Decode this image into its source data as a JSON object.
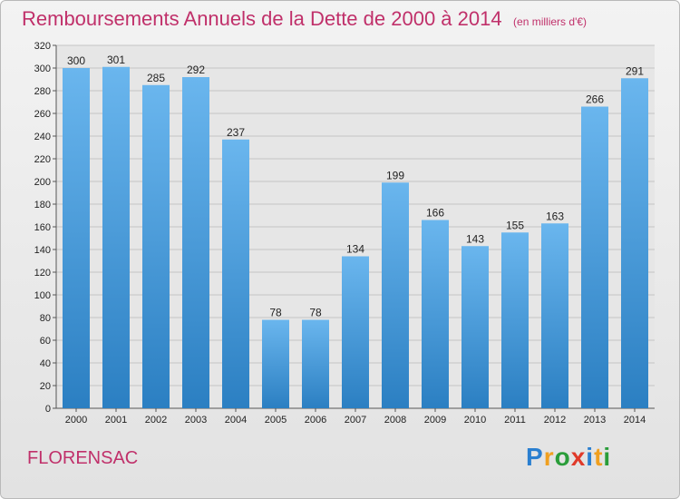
{
  "title": "Remboursements Annuels de la Dette de 2000 à 2014",
  "unit_note": "(en milliers d'€)",
  "city": "FLORENSAC",
  "logo": {
    "text": "Proxiti",
    "letter_colors": [
      "#2a7fd0",
      "#f0a020",
      "#2a9d3a",
      "#e03a2a",
      "#2a7fd0",
      "#f0a020",
      "#2a9d3a"
    ]
  },
  "colors": {
    "bar_top": "#6ab6ee",
    "bar_bottom": "#2b7fc2",
    "accent": "#c0306a"
  },
  "chart_data": {
    "type": "bar",
    "title": "Remboursements Annuels de la Dette de 2000 à 2014",
    "categories": [
      "2000",
      "2001",
      "2002",
      "2003",
      "2004",
      "2005",
      "2006",
      "2007",
      "2008",
      "2009",
      "2010",
      "2011",
      "2012",
      "2013",
      "2014"
    ],
    "values": [
      300,
      301,
      285,
      292,
      237,
      78,
      78,
      134,
      199,
      166,
      143,
      155,
      163,
      266,
      291
    ],
    "ylim": [
      0,
      320
    ],
    "yticks": [
      0,
      20,
      40,
      60,
      80,
      100,
      120,
      140,
      160,
      180,
      200,
      220,
      240,
      260,
      280,
      300,
      320
    ],
    "grid": true
  }
}
